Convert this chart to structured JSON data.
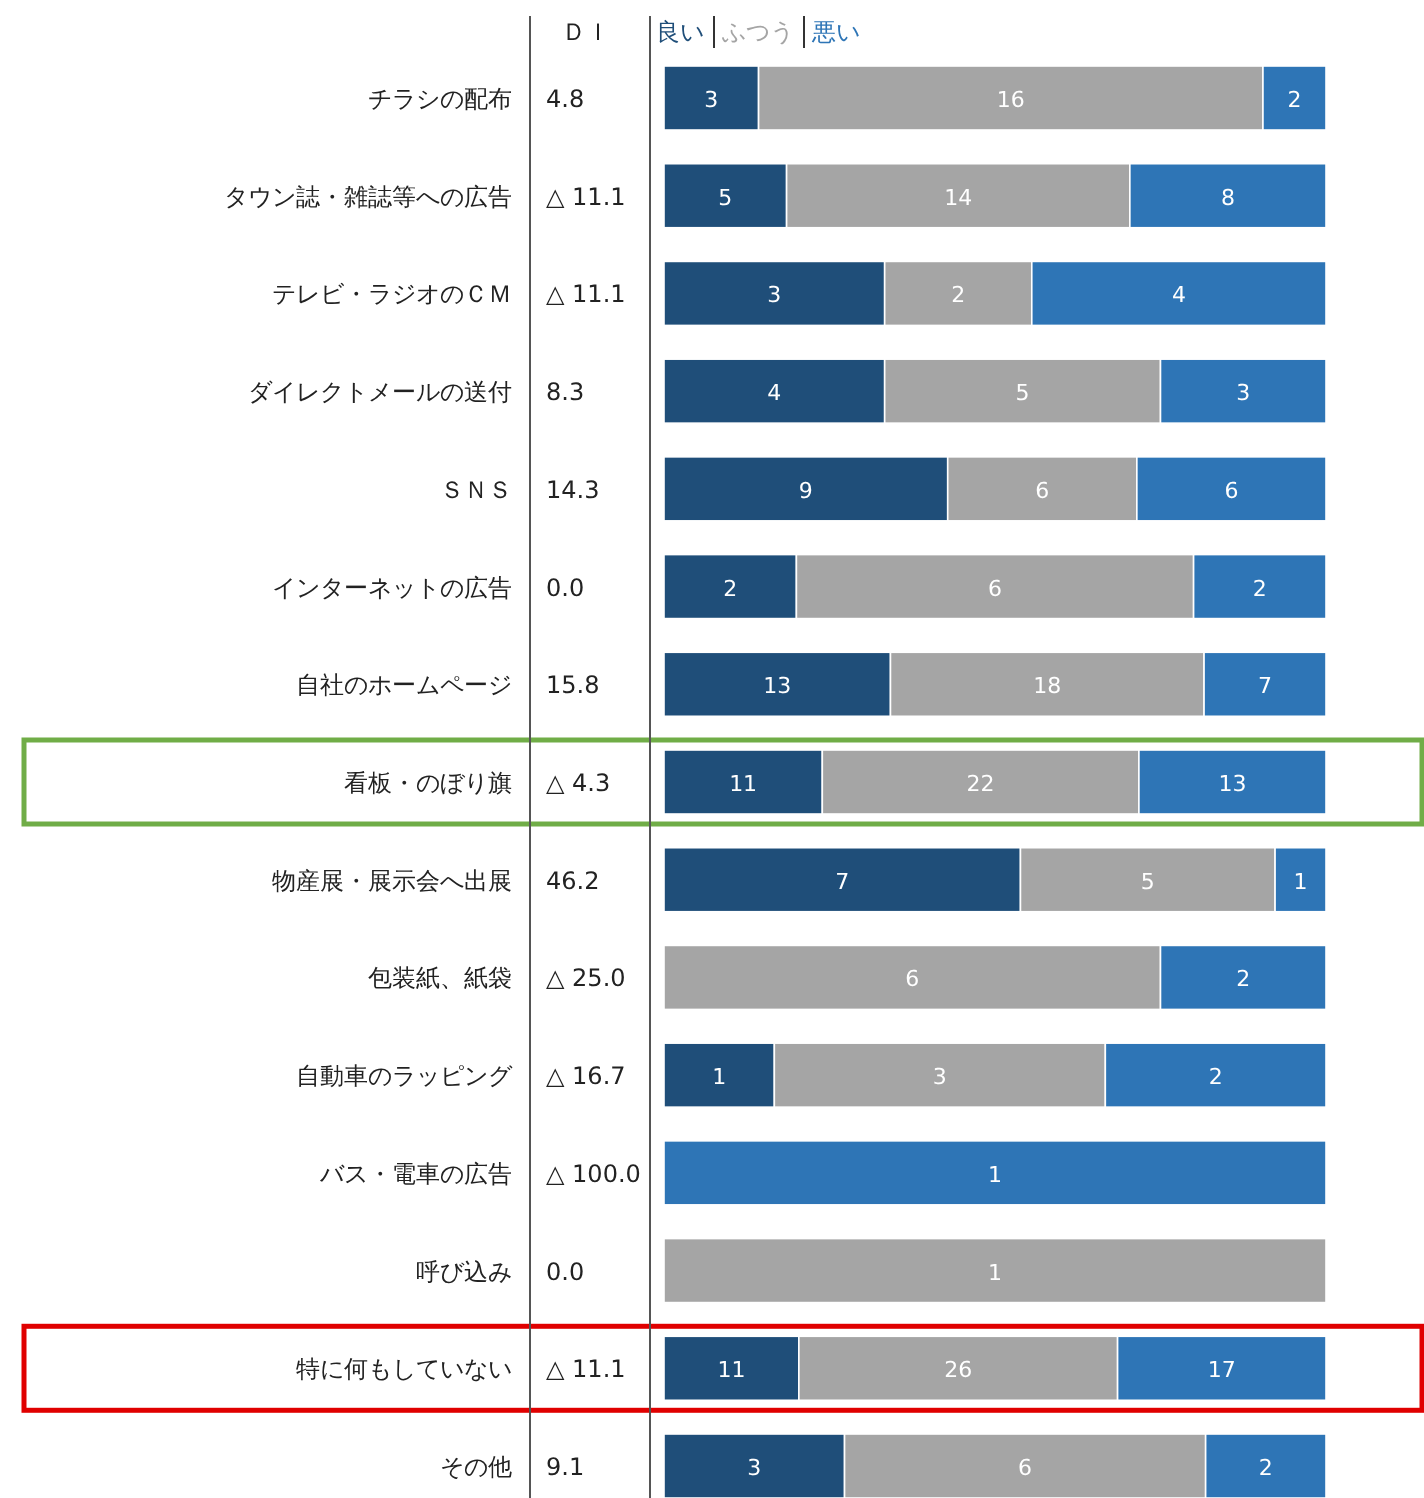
{
  "chart_data": [
    {
      "type": "bar",
      "orientation": "horizontal",
      "stacked": true,
      "data_labels": true,
      "legend": "top",
      "categories": [
        "チラシの配布"
      ],
      "annotations": [
        "ＤＩ",
        "4.8"
      ],
      "series": [
        {
          "name": "良い",
          "color": "#1f4e79",
          "values": [
            3
          ]
        },
        {
          "name": "ふつう",
          "color": "#a5a5a5",
          "values": [
            16
          ]
        },
        {
          "name": "悪い",
          "color": "#2e75b6",
          "values": [
            2
          ]
        }
      ]
    },
    {
      "type": "bar",
      "orientation": "horizontal",
      "stacked": true,
      "data_labels": true,
      "categories": [
        "タウン誌・雑誌等への広告"
      ],
      "annotations": [
        "△ 11.1"
      ],
      "series": [
        {
          "color": "#1f4e79",
          "values": [
            5
          ]
        },
        {
          "color": "#a5a5a5",
          "values": [
            14
          ]
        },
        {
          "color": "#2e75b6",
          "values": [
            8
          ]
        }
      ]
    },
    {
      "type": "bar",
      "orientation": "horizontal",
      "stacked": true,
      "data_labels": true,
      "categories": [
        "テレビ・ラジオのＣＭ"
      ],
      "annotations": [
        "△ 11.1"
      ],
      "series": [
        {
          "color": "#1f4e79",
          "values": [
            3
          ]
        },
        {
          "color": "#a5a5a5",
          "values": [
            2
          ]
        },
        {
          "color": "#2e75b6",
          "values": [
            4
          ]
        }
      ]
    },
    {
      "type": "bar",
      "orientation": "horizontal",
      "stacked": true,
      "data_labels": true,
      "categories": [
        "ダイレクトメールの送付"
      ],
      "annotations": [
        "8.3"
      ],
      "series": [
        {
          "color": "#1f4e79",
          "values": [
            4
          ]
        },
        {
          "color": "#a5a5a5",
          "values": [
            5
          ]
        },
        {
          "color": "#2e75b6",
          "values": [
            3
          ]
        }
      ]
    },
    {
      "type": "bar",
      "orientation": "horizontal",
      "stacked": true,
      "data_labels": true,
      "categories": [
        "ＳＮＳ"
      ],
      "annotations": [
        "14.3"
      ],
      "series": [
        {
          "color": "#1f4e79",
          "values": [
            9
          ]
        },
        {
          "color": "#a5a5a5",
          "values": [
            6
          ]
        },
        {
          "color": "#2e75b6",
          "values": [
            6
          ]
        }
      ]
    },
    {
      "type": "bar",
      "orientation": "horizontal",
      "stacked": true,
      "data_labels": true,
      "categories": [
        "インターネットの広告"
      ],
      "annotations": [
        "0.0"
      ],
      "series": [
        {
          "color": "#1f4e79",
          "values": [
            2
          ]
        },
        {
          "color": "#a5a5a5",
          "values": [
            6
          ]
        },
        {
          "color": "#2e75b6",
          "values": [
            2
          ]
        }
      ]
    },
    {
      "type": "bar",
      "orientation": "horizontal",
      "stacked": true,
      "data_labels": true,
      "categories": [
        "自社のホームページ"
      ],
      "annotations": [
        "15.8"
      ],
      "series": [
        {
          "color": "#1f4e79",
          "values": [
            13
          ]
        },
        {
          "color": "#a5a5a5",
          "values": [
            18
          ]
        },
        {
          "color": "#2e75b6",
          "values": [
            7
          ]
        }
      ]
    },
    {
      "type": "bar",
      "orientation": "horizontal",
      "stacked": true,
      "data_labels": true,
      "categories": [
        "看板・のぼり旗"
      ],
      "annotations": [
        "△ 4.3"
      ],
      "series": [
        {
          "color": "#1f4e79",
          "values": [
            11
          ]
        },
        {
          "color": "#a5a5a5",
          "values": [
            22
          ]
        },
        {
          "color": "#2e75b6",
          "values": [
            13
          ]
        }
      ]
    },
    {
      "type": "bar",
      "orientation": "horizontal",
      "stacked": true,
      "data_labels": true,
      "categories": [
        "物産展・展示会へ出展"
      ],
      "annotations": [
        "46.2"
      ],
      "series": [
        {
          "color": "#1f4e79",
          "values": [
            7
          ]
        },
        {
          "color": "#a5a5a5",
          "values": [
            5
          ]
        },
        {
          "color": "#2e75b6",
          "values": [
            1
          ]
        }
      ]
    },
    {
      "type": "bar",
      "orientation": "horizontal",
      "stacked": true,
      "data_labels": true,
      "categories": [
        "包装紙、紙袋"
      ],
      "annotations": [
        "△ 25.0"
      ],
      "series": [
        {
          "color": "#a5a5a5",
          "values": [
            6
          ]
        },
        {
          "color": "#2e75b6",
          "values": [
            2
          ]
        }
      ]
    },
    {
      "type": "bar",
      "orientation": "horizontal",
      "stacked": true,
      "data_labels": true,
      "categories": [
        "自動車のラッピング"
      ],
      "annotations": [
        "△ 16.7"
      ],
      "series": [
        {
          "color": "#1f4e79",
          "values": [
            1
          ]
        },
        {
          "color": "#a5a5a5",
          "values": [
            3
          ]
        },
        {
          "color": "#2e75b6",
          "values": [
            2
          ]
        }
      ]
    },
    {
      "type": "bar",
      "orientation": "horizontal",
      "stacked": true,
      "data_labels": true,
      "categories": [
        "バス・電車の広告"
      ],
      "annotations": [
        "△ 100.0"
      ],
      "series": [
        {
          "color": "#2e75b6",
          "values": [
            1
          ]
        }
      ]
    },
    {
      "type": "bar",
      "orientation": "horizontal",
      "stacked": true,
      "data_labels": true,
      "categories": [
        "呼び込み"
      ],
      "annotations": [
        "0.0"
      ],
      "series": [
        {
          "color": "#a5a5a5",
          "values": [
            1
          ]
        }
      ]
    },
    {
      "type": "bar",
      "orientation": "horizontal",
      "stacked": true,
      "data_labels": true,
      "categories": [
        "特に何もしていない"
      ],
      "annotations": [
        "△ 11.1"
      ],
      "series": [
        {
          "color": "#1f4e79",
          "values": [
            11
          ]
        },
        {
          "color": "#a5a5a5",
          "values": [
            26
          ]
        },
        {
          "color": "#2e75b6",
          "values": [
            17
          ]
        }
      ]
    },
    {
      "type": "bar",
      "orientation": "horizontal",
      "stacked": true,
      "data_labels": true,
      "categories": [
        "その他"
      ],
      "annotations": [
        "9.1"
      ],
      "series": [
        {
          "color": "#1f4e79",
          "values": [
            3
          ]
        },
        {
          "color": "#a5a5a5",
          "values": [
            6
          ]
        },
        {
          "color": "#2e75b6",
          "values": [
            2
          ]
        }
      ]
    }
  ]
}
